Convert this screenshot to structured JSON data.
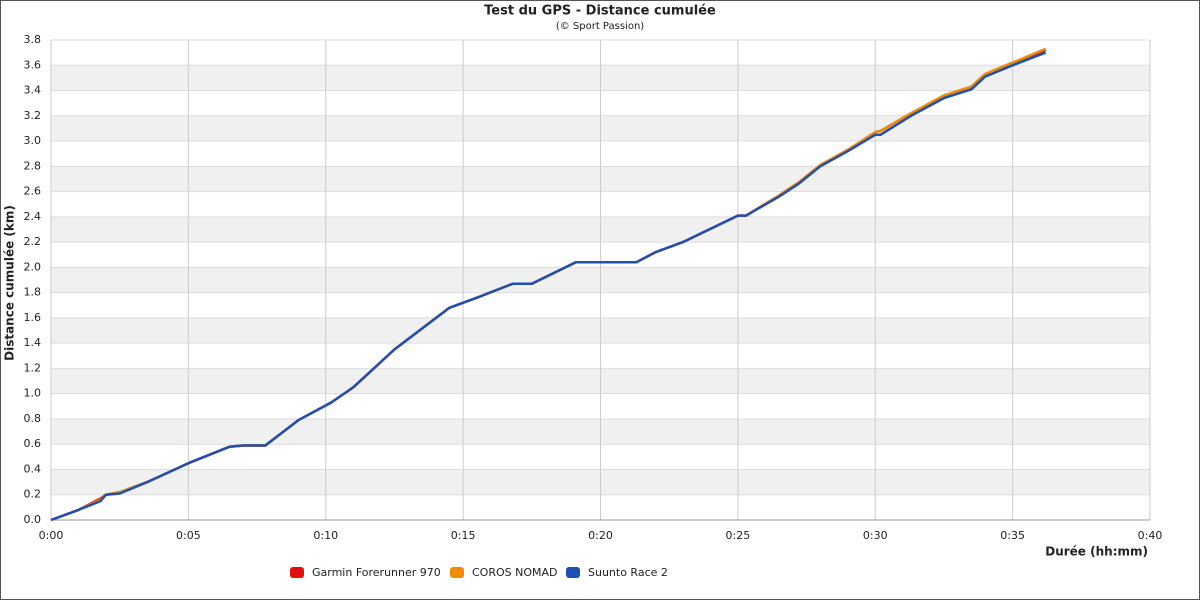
{
  "chart_data": {
    "type": "line",
    "title": "Test du GPS - Distance cumulée",
    "subtitle": "(© Sport Passion)",
    "x_label": "Durée (hh:mm)",
    "y_label": "Distance cumulée (km)",
    "x": [
      0,
      1,
      1.8,
      2,
      2.5,
      3.5,
      5,
      6.5,
      7,
      7.8,
      9,
      10.2,
      11,
      12.5,
      14.5,
      15.5,
      16.8,
      17.5,
      19.1,
      21.3,
      22,
      23,
      25,
      25.3,
      26.5,
      27.2,
      28,
      29,
      30,
      30.2,
      31.3,
      32.5,
      33.5,
      34,
      35,
      36.2
    ],
    "series": [
      {
        "name": "Garmin Forerunner 970",
        "color": "#e01010",
        "values": [
          0,
          0.08,
          0.17,
          0.2,
          0.22,
          0.3,
          0.45,
          0.58,
          0.59,
          0.59,
          0.79,
          0.93,
          1.05,
          1.35,
          1.68,
          1.76,
          1.87,
          1.87,
          2.04,
          2.04,
          2.12,
          2.2,
          2.41,
          2.41,
          2.57,
          2.67,
          2.81,
          2.93,
          3.07,
          3.08,
          3.22,
          3.36,
          3.43,
          3.53,
          3.62,
          3.72
        ]
      },
      {
        "name": "COROS NOMAD",
        "color": "#f08c00",
        "values": [
          0,
          0.08,
          0.16,
          0.2,
          0.22,
          0.3,
          0.45,
          0.58,
          0.59,
          0.59,
          0.79,
          0.93,
          1.05,
          1.35,
          1.68,
          1.76,
          1.87,
          1.87,
          2.04,
          2.04,
          2.12,
          2.2,
          2.41,
          2.41,
          2.57,
          2.67,
          2.81,
          2.93,
          3.07,
          3.08,
          3.22,
          3.36,
          3.43,
          3.53,
          3.62,
          3.73
        ]
      },
      {
        "name": "Suunto Race 2",
        "color": "#1f4fb4",
        "values": [
          0,
          0.08,
          0.15,
          0.2,
          0.21,
          0.3,
          0.45,
          0.58,
          0.59,
          0.59,
          0.79,
          0.93,
          1.05,
          1.35,
          1.68,
          1.76,
          1.87,
          1.87,
          2.04,
          2.04,
          2.12,
          2.2,
          2.41,
          2.41,
          2.56,
          2.66,
          2.8,
          2.92,
          3.05,
          3.05,
          3.2,
          3.34,
          3.41,
          3.51,
          3.6,
          3.7
        ]
      }
    ],
    "xlim": [
      0,
      40
    ],
    "xticks": [
      {
        "value": 0,
        "label": "0:00"
      },
      {
        "value": 5,
        "label": "0:05"
      },
      {
        "value": 10,
        "label": "0:10"
      },
      {
        "value": 15,
        "label": "0:15"
      },
      {
        "value": 20,
        "label": "0:20"
      },
      {
        "value": 25,
        "label": "0:25"
      },
      {
        "value": 30,
        "label": "0:30"
      },
      {
        "value": 35,
        "label": "0:35"
      },
      {
        "value": 40,
        "label": "0:40"
      }
    ],
    "ylim": [
      0,
      3.8
    ],
    "yticks": [
      {
        "value": 0,
        "label": "0.0"
      },
      0.2,
      0.4,
      0.6,
      0.8,
      {
        "value": 1,
        "label": "1.0"
      },
      1.2,
      1.4,
      1.6,
      1.8,
      {
        "value": 2,
        "label": "2.0"
      },
      2.2,
      2.4,
      2.6,
      2.8,
      {
        "value": 3,
        "label": "3.0"
      },
      3.2,
      3.4,
      3.6,
      3.8
    ],
    "grid": true,
    "legend": "bottom"
  }
}
